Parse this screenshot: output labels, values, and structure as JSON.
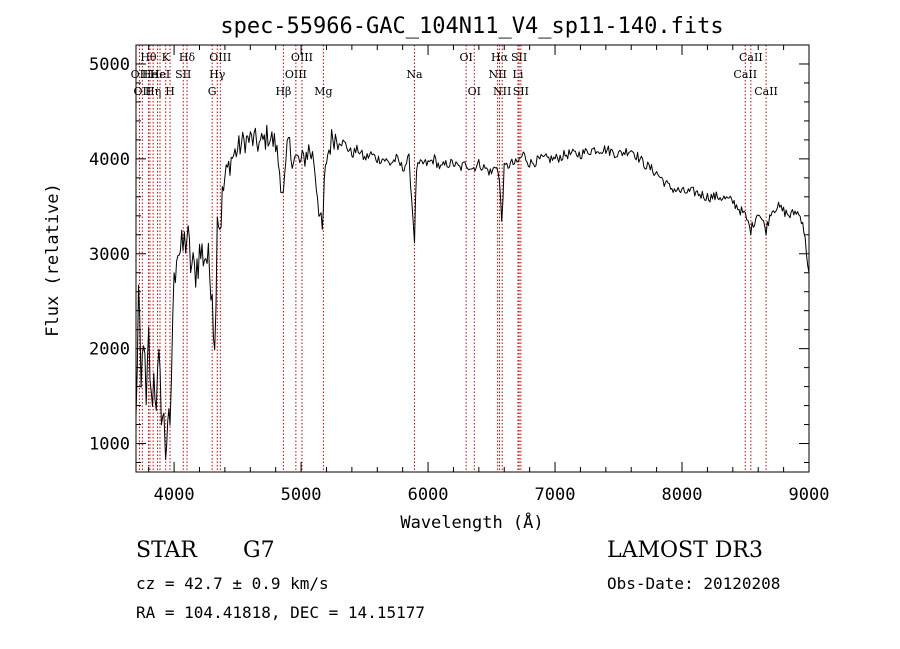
{
  "chart_data": {
    "type": "line",
    "title": "spec-55966-GAC_104N11_V4_sp11-140.fits",
    "xlabel": "Wavelength (Å)",
    "ylabel": "Flux (relative)",
    "xlim": [
      3700,
      9000
    ],
    "ylim": [
      700,
      5200
    ],
    "grid": false,
    "x_ticks": [
      4000,
      5000,
      6000,
      7000,
      8000,
      9000
    ],
    "y_ticks": [
      1000,
      2000,
      3000,
      4000,
      5000
    ],
    "line_color": "#000000",
    "marker_color": "#cc0000",
    "series": [
      {
        "x": [
          3700,
          3720,
          3740,
          3760,
          3780,
          3800,
          3820,
          3840,
          3860,
          3880,
          3900,
          3920,
          3933,
          3950,
          3968,
          3990,
          4020,
          4060,
          4102,
          4130,
          4160,
          4200,
          4250,
          4300,
          4320,
          4340,
          4360,
          4400,
          4450,
          4500,
          4560,
          4620,
          4680,
          4740,
          4800,
          4861,
          4900,
          4920,
          4960,
          5000,
          5060,
          5100,
          5140,
          5167,
          5183,
          5200,
          5250,
          5300,
          5350,
          5400,
          5450,
          5500,
          5550,
          5600,
          5650,
          5700,
          5750,
          5800,
          5850,
          5893,
          5910,
          5950,
          6000,
          6050,
          6100,
          6150,
          6200,
          6250,
          6300,
          6350,
          6400,
          6450,
          6500,
          6540,
          6563,
          6580,
          6600,
          6650,
          6700,
          6750,
          6800,
          6900,
          7000,
          7100,
          7200,
          7300,
          7400,
          7500,
          7600,
          7700,
          7800,
          7900,
          8000,
          8100,
          8200,
          8300,
          8400,
          8498,
          8542,
          8600,
          8662,
          8700,
          8750,
          8800,
          8850,
          8900,
          8950,
          9000
        ],
        "y": [
          1200,
          2600,
          1500,
          2200,
          1300,
          2100,
          1400,
          1700,
          1500,
          1800,
          1400,
          1200,
          900,
          1300,
          1000,
          2400,
          3100,
          3000,
          3200,
          2900,
          2800,
          3000,
          3000,
          2700,
          1900,
          3500,
          3300,
          3800,
          4000,
          4100,
          4200,
          4200,
          4150,
          4250,
          4150,
          3600,
          4200,
          4050,
          4000,
          3950,
          4100,
          4000,
          3500,
          3200,
          3700,
          4000,
          4250,
          4200,
          4150,
          4050,
          4100,
          4000,
          4050,
          4000,
          4000,
          3950,
          4000,
          3900,
          4000,
          3150,
          3900,
          3950,
          3950,
          4000,
          3900,
          3950,
          3950,
          3900,
          3950,
          3900,
          3950,
          3900,
          3850,
          3950,
          3750,
          3350,
          3900,
          3950,
          3950,
          4050,
          3950,
          4000,
          4000,
          4050,
          4050,
          4100,
          4100,
          4050,
          4100,
          3950,
          3850,
          3700,
          3650,
          3650,
          3600,
          3600,
          3550,
          3400,
          3250,
          3450,
          3250,
          3450,
          3500,
          3450,
          3400,
          3450,
          3350,
          2800
        ]
      }
    ],
    "lines": [
      {
        "wl": 3727,
        "label": "OII",
        "row": 1
      },
      {
        "wl": 3750,
        "label": "OII",
        "row": 2
      },
      {
        "wl": 3798,
        "label": "Hθ",
        "row": 0
      },
      {
        "wl": 3810,
        "label": "He",
        "row": 1
      },
      {
        "wl": 3835,
        "label": "Hη",
        "row": 2
      },
      {
        "wl": 3870,
        "label": "Hε",
        "row": 1
      },
      {
        "wl": 3889,
        "label": "HeI",
        "row": 1
      },
      {
        "wl": 3934,
        "label": "K",
        "row": 0
      },
      {
        "wl": 3968,
        "label": "H",
        "row": 2
      },
      {
        "wl": 4072,
        "label": "SII",
        "row": 1
      },
      {
        "wl": 4102,
        "label": "Hδ",
        "row": 0
      },
      {
        "wl": 4300,
        "label": "G",
        "row": 2
      },
      {
        "wl": 4340,
        "label": "Hγ",
        "row": 1
      },
      {
        "wl": 4364,
        "label": "OIII",
        "row": 0
      },
      {
        "wl": 4861,
        "label": "Hβ",
        "row": 2
      },
      {
        "wl": 4959,
        "label": "OIII",
        "row": 1
      },
      {
        "wl": 5007,
        "label": "OIII",
        "row": 0
      },
      {
        "wl": 5176,
        "label": "Mg",
        "row": 2
      },
      {
        "wl": 5893,
        "label": "Na",
        "row": 1
      },
      {
        "wl": 6300,
        "label": "OI",
        "row": 0
      },
      {
        "wl": 6364,
        "label": "OI",
        "row": 2
      },
      {
        "wl": 6548,
        "label": "NII",
        "row": 1
      },
      {
        "wl": 6563,
        "label": "Hα",
        "row": 0
      },
      {
        "wl": 6584,
        "label": "NII",
        "row": 2
      },
      {
        "wl": 6708,
        "label": "Li",
        "row": 1
      },
      {
        "wl": 6717,
        "label": "SII",
        "row": 0
      },
      {
        "wl": 6731,
        "label": "SII",
        "row": 2
      },
      {
        "wl": 8498,
        "label": "CaII",
        "row": 1
      },
      {
        "wl": 8542,
        "label": "CaII",
        "row": 0
      },
      {
        "wl": 8662,
        "label": "CaII",
        "row": 2
      }
    ]
  },
  "info": {
    "class_label": "STAR",
    "subclass_label": "G7",
    "cz_text": "cz = 42.7 ± 0.9 km/s",
    "coords_text": "RA = 104.41818, DEC =  14.15177",
    "survey_label": "LAMOST DR3",
    "obs_date_text": "Obs-Date: 20120208"
  }
}
